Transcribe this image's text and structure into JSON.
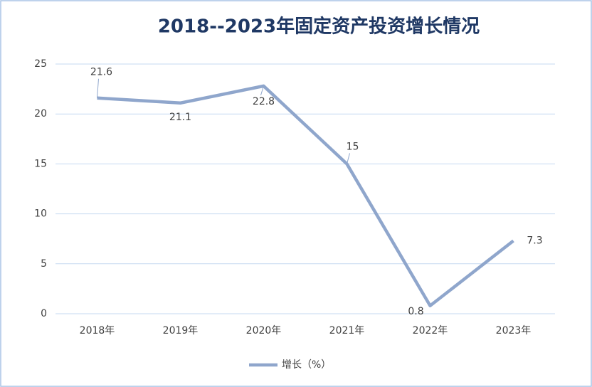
{
  "chart_data": {
    "type": "line",
    "title": "2018--2023年固定资产投资增长情况",
    "categories": [
      "2018年",
      "2019年",
      "2020年",
      "2021年",
      "2022年",
      "2023年"
    ],
    "series": [
      {
        "name": "增长（%）",
        "color": "#8fa6cc",
        "values": [
          21.6,
          21.1,
          22.8,
          15,
          0.8,
          7.3
        ]
      }
    ],
    "ylim": [
      0,
      25
    ],
    "yticks": [
      0,
      5,
      10,
      15,
      20,
      25
    ],
    "grid": true,
    "legend": "bottom"
  }
}
